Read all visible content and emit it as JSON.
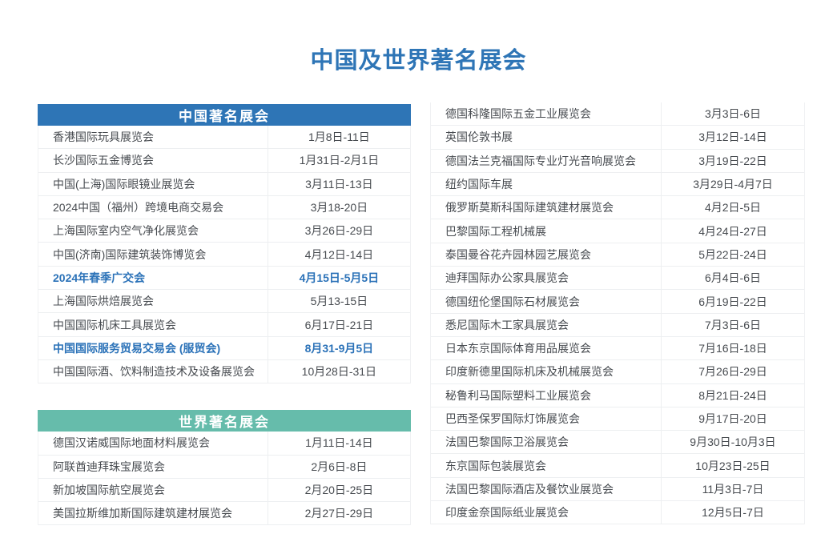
{
  "page": {
    "title": "中国及世界著名展会"
  },
  "colors": {
    "accent_blue": "#2e75b6",
    "accent_teal": "#66bcab",
    "highlight_text": "#2b72b8",
    "body_text": "#474b50",
    "divider": "#edeff1"
  },
  "china_table": {
    "header": "中国著名展会",
    "rows": [
      {
        "name": "香港国际玩具展览会",
        "date": "1月8日-11日",
        "highlight": false
      },
      {
        "name": "长沙国际五金博览会",
        "date": "1月31日-2月1日",
        "highlight": false
      },
      {
        "name": "中国(上海)国际眼镜业展览会",
        "date": "3月11日-13日",
        "highlight": false
      },
      {
        "name": "2024中国（福州）跨境电商交易会",
        "date": "3月18-20日",
        "highlight": false
      },
      {
        "name": "上海国际室内空气净化展览会",
        "date": "3月26日-29日",
        "highlight": false
      },
      {
        "name": "中国(济南)国际建筑装饰博览会",
        "date": "4月12日-14日",
        "highlight": false
      },
      {
        "name": "2024年春季广交会",
        "date": "4月15日-5月5日",
        "highlight": true
      },
      {
        "name": "上海国际烘焙展览会",
        "date": "5月13-15日",
        "highlight": false
      },
      {
        "name": "中国国际机床工具展览会",
        "date": "6月17日-21日",
        "highlight": false
      },
      {
        "name": "中国国际服务贸易交易会 (服贸会)",
        "date": "8月31-9月5日",
        "highlight": true
      },
      {
        "name": "中国国际酒、饮料制造技术及设备展览会",
        "date": "10月28日-31日",
        "highlight": false
      }
    ]
  },
  "world_table": {
    "header": "世界著名展会",
    "rows": [
      {
        "name": "德国汉诺威国际地面材料展览会",
        "date": "1月11日-14日",
        "highlight": false
      },
      {
        "name": "阿联酋迪拜珠宝展览会",
        "date": "2月6日-8日",
        "highlight": false
      },
      {
        "name": "新加坡国际航空展览会",
        "date": "2月20日-25日",
        "highlight": false
      },
      {
        "name": "美国拉斯维加斯国际建筑建材展览会",
        "date": "2月27日-29日",
        "highlight": false
      }
    ]
  },
  "world_table_continued": {
    "rows": [
      {
        "name": "德国科隆国际五金工业展览会",
        "date": "3月3日-6日",
        "highlight": false
      },
      {
        "name": "英国伦敦书展",
        "date": "3月12日-14日",
        "highlight": false
      },
      {
        "name": "德国法兰克福国际专业灯光音响展览会",
        "date": "3月19日-22日",
        "highlight": false
      },
      {
        "name": "纽约国际车展",
        "date": "3月29日-4月7日",
        "highlight": false
      },
      {
        "name": "俄罗斯莫斯科国际建筑建材展览会",
        "date": "4月2日-5日",
        "highlight": false
      },
      {
        "name": "巴黎国际工程机械展",
        "date": "4月24日-27日",
        "highlight": false
      },
      {
        "name": "泰国曼谷花卉园林园艺展览会",
        "date": "5月22日-24日",
        "highlight": false
      },
      {
        "name": "迪拜国际办公家具展览会",
        "date": "6月4日-6日",
        "highlight": false
      },
      {
        "name": "德国纽伦堡国际石材展览会",
        "date": "6月19日-22日",
        "highlight": false
      },
      {
        "name": "悉尼国际木工家具展览会",
        "date": "7月3日-6日",
        "highlight": false
      },
      {
        "name": "日本东京国际体育用品展览会",
        "date": "7月16日-18日",
        "highlight": false
      },
      {
        "name": "印度新德里国际机床及机械展览会",
        "date": "7月26日-29日",
        "highlight": false
      },
      {
        "name": "秘鲁利马国际塑料工业展览会",
        "date": "8月21日-24日",
        "highlight": false
      },
      {
        "name": "巴西圣保罗国际灯饰展览会",
        "date": "9月17日-20日",
        "highlight": false
      },
      {
        "name": "法国巴黎国际卫浴展览会",
        "date": "9月30日-10月3日",
        "highlight": false
      },
      {
        "name": "东京国际包装展览会",
        "date": "10月23日-25日",
        "highlight": false
      },
      {
        "name": "法国巴黎国际酒店及餐饮业展览会",
        "date": "11月3日-7日",
        "highlight": false
      },
      {
        "name": "印度金奈国际纸业展览会",
        "date": "12月5日-7日",
        "highlight": false
      }
    ]
  }
}
